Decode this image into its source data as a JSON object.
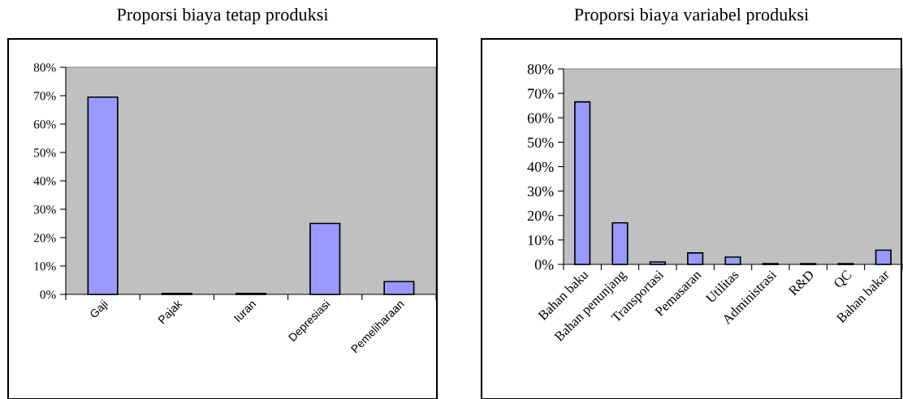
{
  "chart_data": [
    {
      "type": "bar",
      "title": "Proporsi biaya tetap produksi",
      "categories": [
        "Gaji",
        "Pajak",
        "Iuran",
        "Depresiasi",
        "Pemeliharaan"
      ],
      "values": [
        69.5,
        0.3,
        0.3,
        25,
        4.5
      ],
      "color": "#9999ff",
      "ylim": [
        0,
        80
      ],
      "yticks": [
        {
          "value": 0,
          "label": "0%"
        },
        {
          "value": 10,
          "label": "10%"
        },
        {
          "value": 20,
          "label": "20%"
        },
        {
          "value": 30,
          "label": "30%"
        },
        {
          "value": 40,
          "label": "40%"
        },
        {
          "value": 50,
          "label": "50%"
        },
        {
          "value": 60,
          "label": "60%"
        },
        {
          "value": 70,
          "label": "70%"
        },
        {
          "value": 80,
          "label": "80%"
        }
      ],
      "grid": false,
      "legend": false
    },
    {
      "type": "bar",
      "title": "Proporsi biaya variabel produksi",
      "categories": [
        "Bahan baku",
        "Bahan penunjang",
        "Transportasi",
        "Pemasaran",
        "Utilitas",
        "Administrasi",
        "R&D",
        "QC",
        "Bahan bakar"
      ],
      "values": [
        66.5,
        17,
        1,
        4.7,
        3,
        0.3,
        0.3,
        0.3,
        5.8
      ],
      "color": "#9999ff",
      "ylim": [
        0,
        80
      ],
      "yticks": [
        {
          "value": 0,
          "label": "0%"
        },
        {
          "value": 10,
          "label": "10%"
        },
        {
          "value": 20,
          "label": "20%"
        },
        {
          "value": 30,
          "label": "30%"
        },
        {
          "value": 40,
          "label": "40%"
        },
        {
          "value": 50,
          "label": "50%"
        },
        {
          "value": 60,
          "label": "60%"
        },
        {
          "value": 70,
          "label": "70%"
        },
        {
          "value": 80,
          "label": "80%"
        }
      ],
      "grid": false,
      "legend": false
    }
  ]
}
